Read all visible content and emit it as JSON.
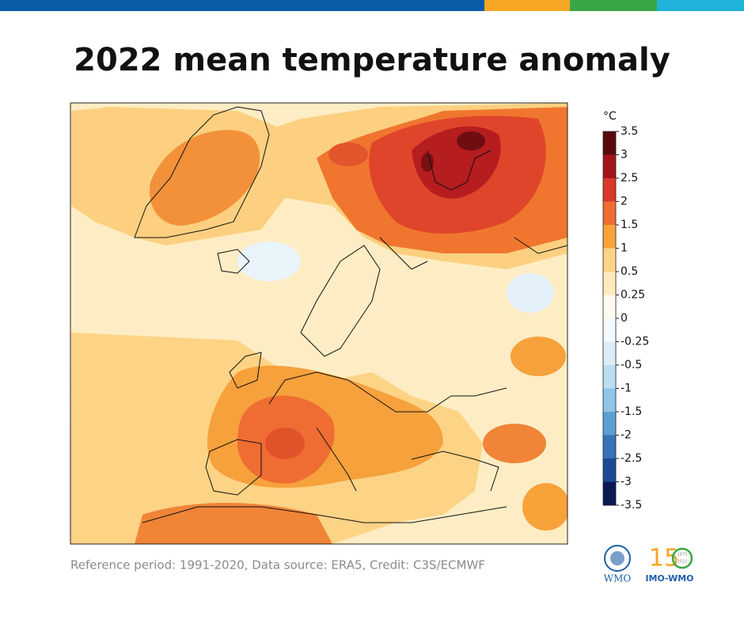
{
  "title": "2022 mean temperature anomaly",
  "colorbar": {
    "unit": "°C",
    "ticks": [
      3.5,
      3,
      2.5,
      2,
      1.5,
      1,
      0.5,
      0.25,
      0,
      -0.25,
      -0.5,
      -1,
      -1.5,
      -2,
      -2.5,
      -3,
      -3.5
    ],
    "colors": [
      "#5a0a0c",
      "#a3141a",
      "#d8392a",
      "#ef6d32",
      "#f8a23a",
      "#fdd486",
      "#feebbb",
      "#fffaee",
      "#f3f9fd",
      "#dcedf8",
      "#bcdcf2",
      "#90c4e9",
      "#5b9fd3",
      "#3673b8",
      "#1c4a92",
      "#0b1a55"
    ]
  },
  "footnote": "Reference period: 1991-2020, Data source: ERA5, Credit: C3S/ECMWF",
  "logos": {
    "wmo": "WMO",
    "imo": "IMO-WMO",
    "years": [
      "1873",
      "2023"
    ]
  }
}
